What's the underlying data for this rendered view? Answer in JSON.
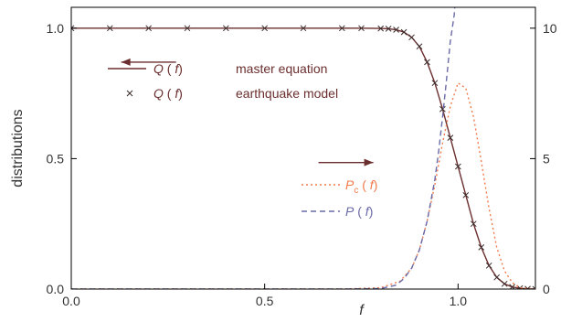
{
  "chart_data": {
    "type": "line",
    "xlabel": "f",
    "ylabel": "distributions",
    "xlim": [
      0.0,
      1.2
    ],
    "ylim": [
      0.0,
      1.08
    ],
    "y2lim": [
      0,
      10.8
    ],
    "x_ticks": [
      {
        "value": 0.0,
        "label": "0.0"
      },
      {
        "value": 0.5,
        "label": "0.5"
      },
      {
        "value": 1.0,
        "label": "1.0"
      }
    ],
    "y_ticks": [
      {
        "value": 0.0,
        "label": "0.0"
      },
      {
        "value": 0.5,
        "label": "0.5"
      },
      {
        "value": 1.0,
        "label": "1.0"
      }
    ],
    "y2_ticks": [
      {
        "value": 0,
        "label": "0"
      },
      {
        "value": 5,
        "label": "5"
      },
      {
        "value": 10,
        "label": "10"
      }
    ],
    "series": [
      {
        "key": "q_master",
        "axis": "left",
        "style": "solid",
        "color": "#6b2e2e",
        "x": [
          0.0,
          0.1,
          0.2,
          0.3,
          0.4,
          0.5,
          0.6,
          0.7,
          0.75,
          0.8,
          0.82,
          0.84,
          0.86,
          0.88,
          0.9,
          0.92,
          0.94,
          0.96,
          0.98,
          1.0,
          1.02,
          1.04,
          1.06,
          1.08,
          1.1,
          1.12,
          1.14,
          1.16,
          1.18,
          1.2
        ],
        "values": [
          1.0,
          1.0,
          1.0,
          1.0,
          1.0,
          1.0,
          1.0,
          1.0,
          1.0,
          0.999,
          0.998,
          0.994,
          0.985,
          0.965,
          0.93,
          0.87,
          0.79,
          0.69,
          0.58,
          0.47,
          0.36,
          0.25,
          0.16,
          0.09,
          0.045,
          0.02,
          0.008,
          0.003,
          0.001,
          0.0
        ]
      },
      {
        "key": "q_earthquake",
        "axis": "left",
        "style": "markers",
        "color": "#3a2a2a",
        "x": [
          0.0,
          0.1,
          0.2,
          0.3,
          0.4,
          0.5,
          0.6,
          0.7,
          0.75,
          0.8,
          0.82,
          0.84,
          0.86,
          0.88,
          0.9,
          0.92,
          0.94,
          0.96,
          0.98,
          1.0,
          1.02,
          1.04,
          1.06,
          1.08,
          1.1,
          1.12,
          1.14,
          1.16,
          1.18,
          1.2
        ],
        "values": [
          1.0,
          1.0,
          1.0,
          1.0,
          1.0,
          1.0,
          1.0,
          1.0,
          1.0,
          0.999,
          0.998,
          0.994,
          0.985,
          0.965,
          0.93,
          0.87,
          0.79,
          0.69,
          0.58,
          0.47,
          0.36,
          0.25,
          0.16,
          0.09,
          0.045,
          0.02,
          0.008,
          0.003,
          0.001,
          0.0
        ]
      },
      {
        "key": "p_c",
        "axis": "right",
        "style": "dotted",
        "color": "#f07a4a",
        "x": [
          0.0,
          0.7,
          0.8,
          0.85,
          0.88,
          0.9,
          0.92,
          0.94,
          0.96,
          0.98,
          1.0,
          1.02,
          1.04,
          1.06,
          1.08,
          1.1,
          1.12,
          1.14,
          1.16,
          1.2
        ],
        "values": [
          0.0,
          0.0,
          0.05,
          0.3,
          0.8,
          1.5,
          2.6,
          4.0,
          5.6,
          7.0,
          7.9,
          7.7,
          6.6,
          4.9,
          3.1,
          1.6,
          0.7,
          0.25,
          0.05,
          0.0
        ]
      },
      {
        "key": "p",
        "axis": "right",
        "style": "dashed",
        "color": "#6a6aa8",
        "x": [
          0.0,
          0.7,
          0.8,
          0.84,
          0.86,
          0.88,
          0.9,
          0.92,
          0.94,
          0.95,
          0.96,
          0.97,
          0.98,
          0.99,
          0.995
        ],
        "values": [
          0.0,
          0.0,
          0.02,
          0.15,
          0.4,
          0.8,
          1.5,
          2.6,
          4.2,
          5.3,
          6.6,
          8.0,
          9.5,
          10.5,
          11.5
        ]
      }
    ],
    "legend_top": [
      {
        "series": "q_master",
        "sym": "Q",
        "arg": "f",
        "desc": "master equation",
        "color": "#6b2e2e"
      },
      {
        "series": "q_earthquake",
        "sym": "Q",
        "arg": "f",
        "desc": "earthquake model",
        "color": "#6b2e2e"
      }
    ],
    "legend_bottom": [
      {
        "series": "p_c",
        "sym": "P",
        "sub": "c",
        "arg": "f",
        "color": "#f07a4a"
      },
      {
        "series": "p",
        "sym": "P",
        "arg": "f",
        "color": "#6a6aa8"
      }
    ],
    "arrows": [
      {
        "direction": "left",
        "at": [
          0.2,
          0.87
        ]
      },
      {
        "direction": "right",
        "at": [
          0.71,
          0.485
        ]
      }
    ]
  }
}
